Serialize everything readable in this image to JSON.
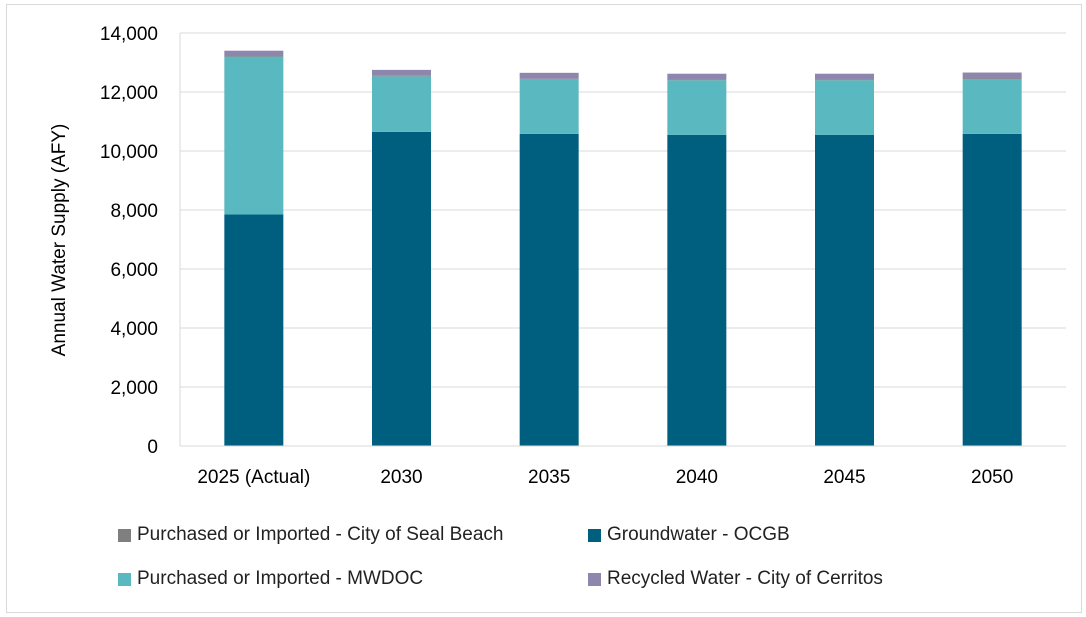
{
  "chart_data": {
    "type": "bar",
    "stacked": true,
    "categories": [
      "2025 (Actual)",
      "2030",
      "2035",
      "2040",
      "2045",
      "2050"
    ],
    "ylabel": "Annual Water Supply (AFY)",
    "xlabel": "",
    "ylim": [
      0,
      14000
    ],
    "yticks": [
      0,
      2000,
      4000,
      6000,
      8000,
      10000,
      12000,
      14000
    ],
    "ytick_labels": [
      "0",
      "2,000",
      "4,000",
      "6,000",
      "8,000",
      "10,000",
      "12,000",
      "14,000"
    ],
    "grid": "horizontal",
    "legend_position": "bottom",
    "series": [
      {
        "name": "Groundwater - OCGB",
        "color": "#005f7f",
        "values": [
          7850,
          10650,
          10580,
          10550,
          10550,
          10580
        ]
      },
      {
        "name": "Purchased or Imported - MWDOC",
        "color": "#5ab8c0",
        "values": [
          5350,
          1880,
          1850,
          1850,
          1850,
          1860
        ]
      },
      {
        "name": "Purchased or Imported - City of Seal Beach",
        "color": "#7f7f7f",
        "values": [
          20,
          20,
          20,
          20,
          20,
          20
        ]
      },
      {
        "name": "Recycled Water - City of Cerritos",
        "color": "#8e86ad",
        "values": [
          180,
          200,
          200,
          200,
          200,
          200
        ]
      }
    ],
    "legend_order": [
      "Purchased or Imported - City of Seal Beach",
      "Groundwater - OCGB",
      "Purchased or Imported - MWDOC",
      "Recycled Water - City of Cerritos"
    ]
  }
}
